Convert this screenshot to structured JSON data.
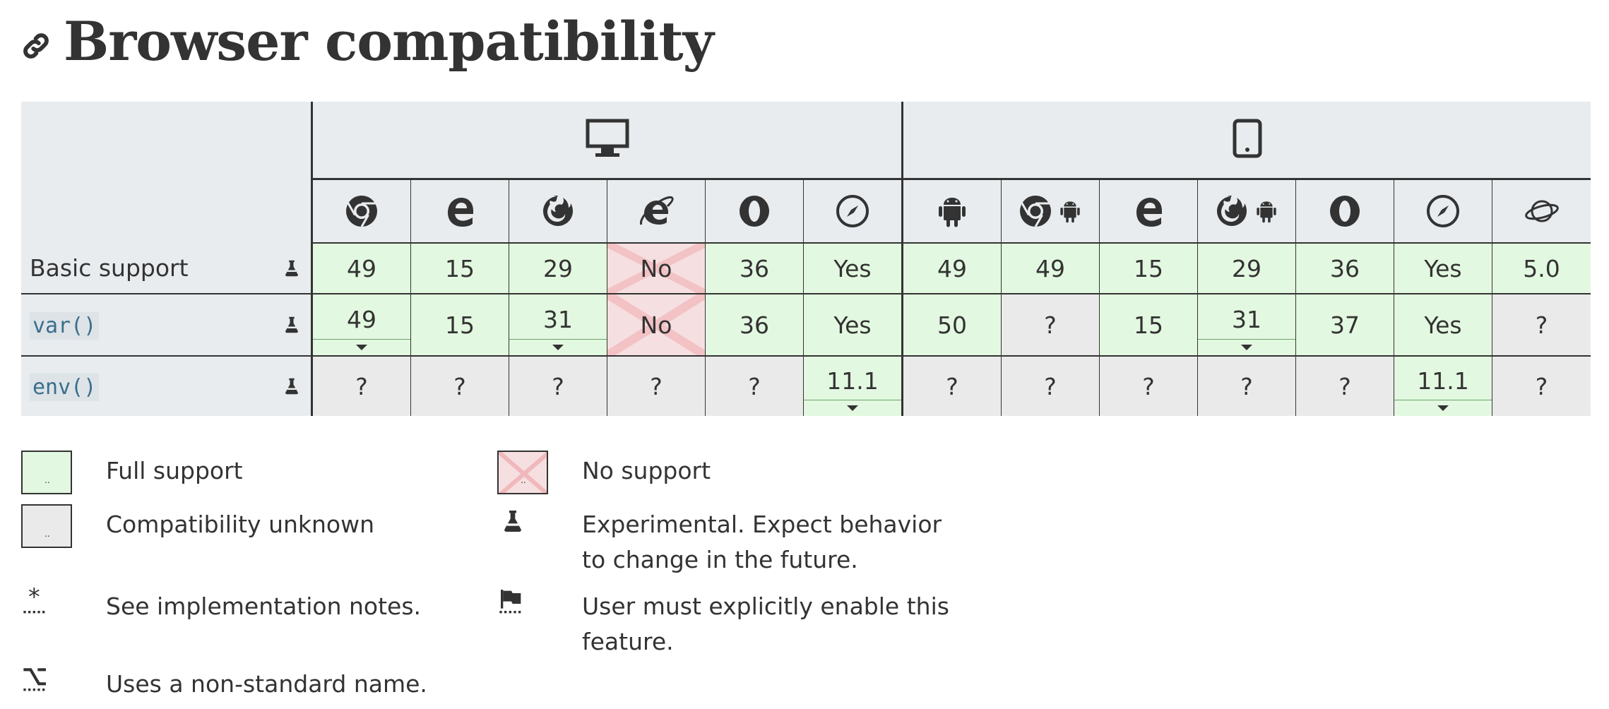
{
  "heading": {
    "title": "Browser compatibility",
    "icon": "link-icon"
  },
  "table": {
    "device_groups": [
      {
        "name": "desktop",
        "icon": "desktop-icon"
      },
      {
        "name": "mobile",
        "icon": "tablet-icon"
      }
    ],
    "browsers": [
      {
        "id": "chrome",
        "icon": "chrome-icon"
      },
      {
        "id": "edge",
        "icon": "edge-icon"
      },
      {
        "id": "firefox",
        "icon": "firefox-icon"
      },
      {
        "id": "ie",
        "icon": "internet-explorer-icon"
      },
      {
        "id": "opera",
        "icon": "opera-icon"
      },
      {
        "id": "safari",
        "icon": "safari-icon"
      },
      {
        "id": "webview_android",
        "icon": "android-icon"
      },
      {
        "id": "chrome_android",
        "icon": "chrome-android-icon"
      },
      {
        "id": "edge_mobile",
        "icon": "edge-icon"
      },
      {
        "id": "firefox_android",
        "icon": "firefox-android-icon"
      },
      {
        "id": "opera_android",
        "icon": "opera-icon"
      },
      {
        "id": "safari_ios",
        "icon": "safari-icon"
      },
      {
        "id": "samsunginternet_android",
        "icon": "samsung-internet-icon"
      }
    ],
    "rows": [
      {
        "feature": "Basic support",
        "is_code": false,
        "experimental": true,
        "cells": [
          {
            "value": "49",
            "support": "full"
          },
          {
            "value": "15",
            "support": "full"
          },
          {
            "value": "29",
            "support": "full"
          },
          {
            "value": "No",
            "support": "no"
          },
          {
            "value": "36",
            "support": "full"
          },
          {
            "value": "Yes",
            "support": "full"
          },
          {
            "value": "49",
            "support": "full"
          },
          {
            "value": "49",
            "support": "full"
          },
          {
            "value": "15",
            "support": "full"
          },
          {
            "value": "29",
            "support": "full"
          },
          {
            "value": "36",
            "support": "full"
          },
          {
            "value": "Yes",
            "support": "full"
          },
          {
            "value": "5.0",
            "support": "full"
          }
        ]
      },
      {
        "feature": "var()",
        "is_code": true,
        "experimental": true,
        "cells": [
          {
            "value": "49",
            "support": "full",
            "notes": true
          },
          {
            "value": "15",
            "support": "full"
          },
          {
            "value": "31",
            "support": "full",
            "notes": true
          },
          {
            "value": "No",
            "support": "no"
          },
          {
            "value": "36",
            "support": "full"
          },
          {
            "value": "Yes",
            "support": "full"
          },
          {
            "value": "50",
            "support": "full"
          },
          {
            "value": "?",
            "support": "unknown"
          },
          {
            "value": "15",
            "support": "full"
          },
          {
            "value": "31",
            "support": "full",
            "notes": true
          },
          {
            "value": "37",
            "support": "full"
          },
          {
            "value": "Yes",
            "support": "full"
          },
          {
            "value": "?",
            "support": "unknown"
          }
        ]
      },
      {
        "feature": "env()",
        "is_code": true,
        "experimental": true,
        "cells": [
          {
            "value": "?",
            "support": "unknown"
          },
          {
            "value": "?",
            "support": "unknown"
          },
          {
            "value": "?",
            "support": "unknown"
          },
          {
            "value": "?",
            "support": "unknown"
          },
          {
            "value": "?",
            "support": "unknown"
          },
          {
            "value": "11.1",
            "support": "full",
            "notes": true
          },
          {
            "value": "?",
            "support": "unknown"
          },
          {
            "value": "?",
            "support": "unknown"
          },
          {
            "value": "?",
            "support": "unknown"
          },
          {
            "value": "?",
            "support": "unknown"
          },
          {
            "value": "?",
            "support": "unknown"
          },
          {
            "value": "11.1",
            "support": "full",
            "notes": true
          },
          {
            "value": "?",
            "support": "unknown"
          }
        ]
      }
    ]
  },
  "legend": {
    "full_support": "Full support",
    "no_support": "No support",
    "unknown": "Compatibility unknown",
    "experimental": "Experimental. Expect behavior to change in the future.",
    "notes": "See implementation notes.",
    "flag": "User must explicitly enable this feature.",
    "alternative_name": "Uses a non-standard name."
  },
  "colors": {
    "full": "#e3f8e0",
    "no": "#f6dfe0",
    "unknown": "#eaeaea",
    "header": "#e8ecef",
    "code_text": "#3a6f8c"
  }
}
